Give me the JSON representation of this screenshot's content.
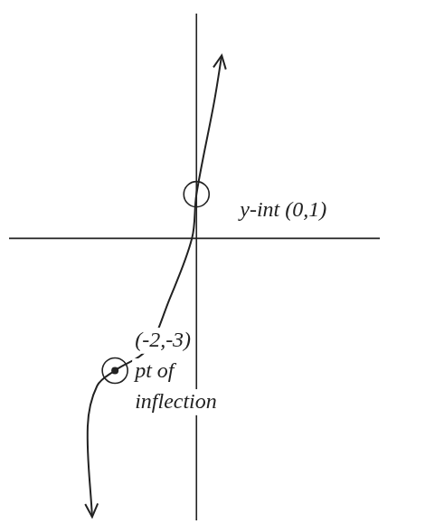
{
  "chart_data": {
    "type": "line",
    "series": [
      {
        "x": [
          -2.56,
          -2.67,
          -2.44,
          -2,
          -1.22,
          -0.67,
          -0.11,
          0,
          0.44,
          0.62
        ],
        "values": [
          -6.32,
          -4.27,
          -3.35,
          -3,
          -2.53,
          -1.4,
          0,
          1,
          3.12,
          4.15
        ],
        "color": "#222222",
        "line_style": "solid"
      }
    ],
    "xlim": [
      -4.6,
      4.5
    ],
    "ylim": [
      -6.4,
      5.1
    ],
    "tick_labels": false,
    "grid": false,
    "annotations": [
      {
        "x": 0,
        "y": 1,
        "text": [
          "y-int (0,1)"
        ],
        "marker": "circle"
      },
      {
        "x": -2,
        "y": -3,
        "text": [
          "(-2,-3)",
          "pt of",
          "inflection"
        ],
        "marker": "circled_dot"
      }
    ]
  }
}
